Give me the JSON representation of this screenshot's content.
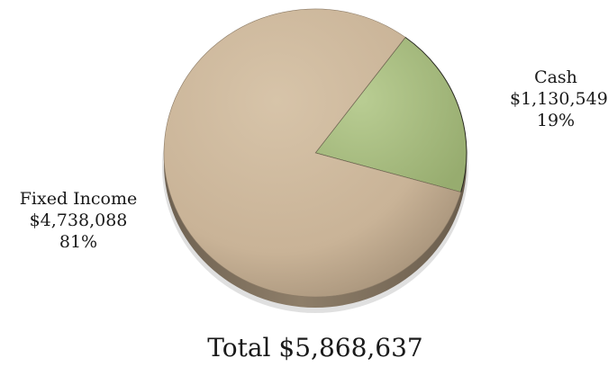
{
  "chart_data": {
    "type": "pie",
    "slices": [
      {
        "label": "Cash",
        "value": 1130549,
        "value_text": "$1,130,549",
        "percent_text": "19%",
        "color": "#a9bf80"
      },
      {
        "label": "Fixed Income",
        "value": 4738088,
        "value_text": "$4,738,088",
        "percent_text": "81%",
        "color": "#cdb89b"
      }
    ],
    "total": 5868637,
    "total_text": "Total $5,868,637",
    "style": "3d-shaded"
  }
}
